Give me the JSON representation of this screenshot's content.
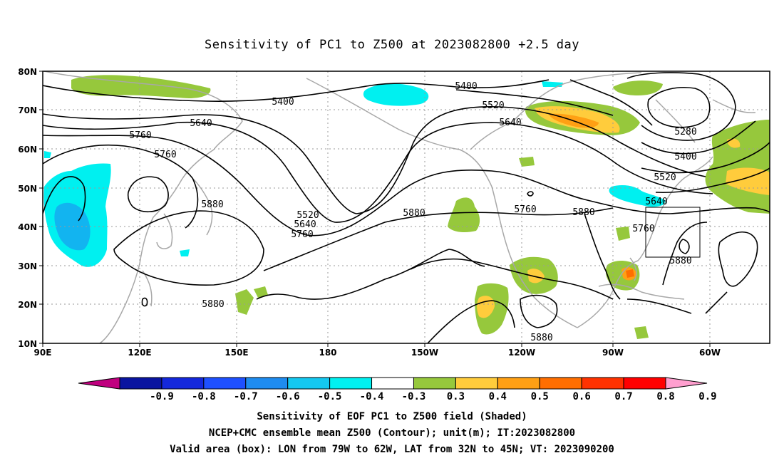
{
  "title": "Sensitivity of PC1 to Z500 at 2023082800 +2.5 day",
  "lat_ticks": [
    "80N",
    "70N",
    "60N",
    "50N",
    "40N",
    "30N",
    "20N",
    "10N"
  ],
  "lon_ticks": [
    "90E",
    "120E",
    "150E",
    "180",
    "150W",
    "120W",
    "90W",
    "60W"
  ],
  "contour_labels": [
    "5400",
    "5400",
    "5520",
    "5640",
    "5760",
    "5760",
    "5880",
    "5520",
    "5640",
    "5760",
    "5880",
    "5640",
    "5760",
    "5880",
    "5280",
    "5400",
    "5520",
    "5640",
    "5760",
    "5880",
    "5880",
    "5880"
  ],
  "colorbar": {
    "labels": [
      "-0.9",
      "-0.8",
      "-0.7",
      "-0.6",
      "-0.5",
      "-0.4",
      "-0.3",
      "0.3",
      "0.4",
      "0.5",
      "0.6",
      "0.7",
      "0.8",
      "0.9"
    ],
    "colors": [
      "#c0007f",
      "#0a14a0",
      "#1428dc",
      "#1e50ff",
      "#1e8cf0",
      "#14c8f0",
      "#00f0f0",
      "#ffffff",
      "#96c83c",
      "#ffcc3c",
      "#ffa014",
      "#ff6e00",
      "#ff3200",
      "#ff0000",
      "#ff9fcf"
    ]
  },
  "caption": {
    "line1": "Sensitivity of EOF PC1 to Z500 field (Shaded)",
    "line2": "NCEP+CMC ensemble mean Z500 (Contour); unit(m); IT:2023082800",
    "line3": "Valid area (box): LON from 79W to 62W, LAT from 32N to 45N; VT: 2023090200"
  }
}
